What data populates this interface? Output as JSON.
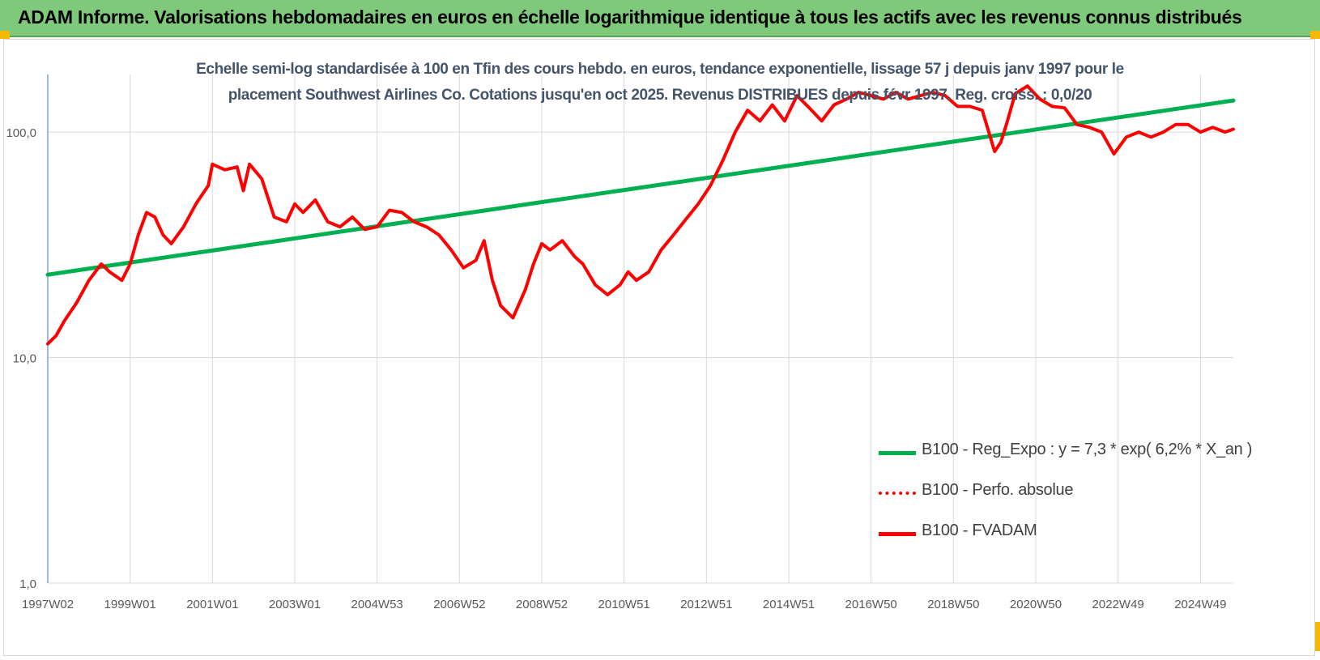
{
  "page": {
    "title": "ADAM Informe. Valorisations hebdomadaires en euros en échelle logarithmique identique à tous les actifs avec les revenus connus distribués"
  },
  "chart_data": {
    "type": "line",
    "title_lines": [
      "Echelle semi-log standardisée à 100 en Tfin des cours hebdo. en euros, tendance exponentielle, lissage 57 j depuis janv 1997 pour le",
      "placement Southwest Airlines Co. Cotations jusqu'en oct 2025. Revenus DISTRIBUES depuis févr 1997. Reg. croiss. : 0,0/20"
    ],
    "y_scale": "log",
    "ylim": [
      1,
      180
    ],
    "y_ticks": [
      {
        "value": 1,
        "label": "1,0"
      },
      {
        "value": 10,
        "label": "10,0"
      },
      {
        "value": 100,
        "label": "100,0"
      }
    ],
    "xlim": [
      1997.0,
      2025.8
    ],
    "x_ticks": [
      {
        "value": 1997.0,
        "label": "1997W02"
      },
      {
        "value": 1999.0,
        "label": "1999W01"
      },
      {
        "value": 2001.0,
        "label": "2001W01"
      },
      {
        "value": 2003.0,
        "label": "2003W01"
      },
      {
        "value": 2005.0,
        "label": "2004W53"
      },
      {
        "value": 2007.0,
        "label": "2006W52"
      },
      {
        "value": 2009.0,
        "label": "2008W52"
      },
      {
        "value": 2011.0,
        "label": "2010W51"
      },
      {
        "value": 2013.0,
        "label": "2012W51"
      },
      {
        "value": 2015.0,
        "label": "2014W51"
      },
      {
        "value": 2017.0,
        "label": "2016W50"
      },
      {
        "value": 2019.0,
        "label": "2018W50"
      },
      {
        "value": 2021.0,
        "label": "2020W50"
      },
      {
        "value": 2023.0,
        "label": "2022W49"
      },
      {
        "value": 2025.0,
        "label": "2024W49"
      }
    ],
    "grid": true,
    "legend_position": "bottom-right",
    "series": [
      {
        "name": "B100 - Reg_Expo : y = 7,3 * exp( 6,2% *  X_an )",
        "color": "#00b050",
        "style": "solid",
        "x": [
          1997.0,
          2025.8
        ],
        "values": [
          23.3,
          138.0
        ]
      },
      {
        "name": "B100 - Perfo. absolue",
        "color": "#ff0000",
        "style": "dotted",
        "x": [],
        "values": []
      },
      {
        "name": "B100 - FVADAM",
        "color": "#ff0000",
        "style": "solid",
        "x": [
          1997.0,
          1997.2,
          1997.4,
          1997.7,
          1998.0,
          1998.3,
          1998.5,
          1998.8,
          1999.0,
          1999.2,
          1999.4,
          1999.6,
          1999.8,
          2000.0,
          2000.3,
          2000.6,
          2000.9,
          2001.0,
          2001.3,
          2001.6,
          2001.75,
          2001.9,
          2002.2,
          2002.5,
          2002.8,
          2003.0,
          2003.2,
          2003.5,
          2003.8,
          2004.1,
          2004.4,
          2004.7,
          2005.0,
          2005.3,
          2005.6,
          2005.9,
          2006.2,
          2006.5,
          2006.8,
          2007.1,
          2007.4,
          2007.6,
          2007.8,
          2008.0,
          2008.3,
          2008.6,
          2008.8,
          2009.0,
          2009.2,
          2009.5,
          2009.8,
          2010.0,
          2010.3,
          2010.6,
          2010.9,
          2011.1,
          2011.3,
          2011.6,
          2011.9,
          2012.2,
          2012.5,
          2012.8,
          2013.1,
          2013.4,
          2013.7,
          2014.0,
          2014.3,
          2014.6,
          2014.9,
          2015.2,
          2015.5,
          2015.8,
          2016.1,
          2016.4,
          2016.7,
          2017.0,
          2017.3,
          2017.6,
          2017.9,
          2018.2,
          2018.5,
          2018.8,
          2019.1,
          2019.4,
          2019.7,
          2020.0,
          2020.15,
          2020.3,
          2020.5,
          2020.8,
          2021.1,
          2021.4,
          2021.7,
          2022.0,
          2022.3,
          2022.6,
          2022.9,
          2023.2,
          2023.5,
          2023.8,
          2024.1,
          2024.4,
          2024.7,
          2025.0,
          2025.3,
          2025.6,
          2025.8
        ],
        "values": [
          11.5,
          12.5,
          14.5,
          17.5,
          22,
          26,
          24,
          22,
          26,
          35,
          44,
          42,
          35,
          32,
          38,
          48,
          58,
          72,
          68,
          70,
          55,
          72,
          62,
          42,
          40,
          48,
          44,
          50,
          40,
          38,
          42,
          37,
          38,
          45,
          44,
          40,
          38,
          35,
          30,
          25,
          27,
          33,
          22,
          17,
          15,
          20,
          26,
          32,
          30,
          33,
          28,
          26,
          21,
          19,
          21,
          24,
          22,
          24,
          30,
          35,
          41,
          48,
          58,
          75,
          100,
          125,
          112,
          132,
          112,
          145,
          128,
          112,
          132,
          140,
          150,
          145,
          140,
          150,
          140,
          145,
          150,
          145,
          130,
          130,
          125,
          82,
          90,
          110,
          148,
          160,
          140,
          130,
          128,
          108,
          105,
          100,
          80,
          95,
          100,
          95,
          100,
          108,
          108,
          100,
          105,
          100,
          103
        ]
      }
    ]
  }
}
